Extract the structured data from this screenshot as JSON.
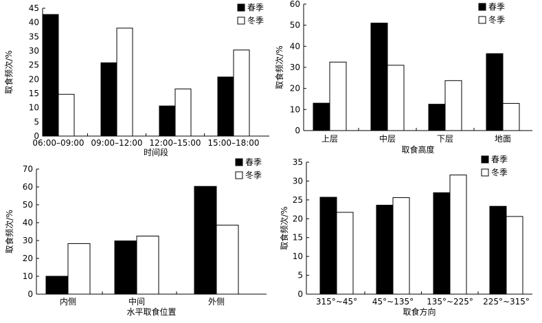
{
  "chart_data": [
    {
      "type": "bar",
      "categories": [
        "06:00–09:00",
        "09:00–12:00",
        "12:00–15:00",
        "15:00–18:00"
      ],
      "series": [
        {
          "name": "春季",
          "values": [
            42.8,
            25.8,
            10.6,
            20.8
          ]
        },
        {
          "name": "冬季",
          "values": [
            14.7,
            38.0,
            16.6,
            30.3
          ]
        }
      ],
      "xlabel": "时间段",
      "ylabel": "取食频次/%",
      "ylim": [
        0,
        45
      ],
      "yticks": [
        0,
        5,
        10,
        15,
        20,
        25,
        30,
        35,
        40,
        45
      ],
      "legend": "top-right",
      "grid": false
    },
    {
      "type": "bar",
      "categories": [
        "上层",
        "中层",
        "下层",
        "地面"
      ],
      "series": [
        {
          "name": "春季",
          "values": [
            13.0,
            51.0,
            12.5,
            36.5
          ]
        },
        {
          "name": "冬季",
          "values": [
            32.5,
            31.0,
            23.7,
            12.9
          ]
        }
      ],
      "xlabel": "取食高度",
      "ylabel": "取食频次/%",
      "ylim": [
        0,
        60
      ],
      "yticks": [
        0,
        10,
        20,
        30,
        40,
        50,
        60
      ],
      "legend": "top-right",
      "grid": false
    },
    {
      "type": "bar",
      "categories": [
        "内侧",
        "中间",
        "外侧"
      ],
      "series": [
        {
          "name": "春季",
          "values": [
            10.0,
            29.8,
            60.3
          ]
        },
        {
          "name": "冬季",
          "values": [
            28.3,
            32.5,
            38.6
          ]
        }
      ],
      "xlabel": "水平取食位置",
      "ylabel": "取食频次/%",
      "ylim": [
        0,
        70
      ],
      "yticks": [
        0,
        10,
        20,
        30,
        40,
        50,
        60,
        70
      ],
      "legend": "top-right",
      "grid": false
    },
    {
      "type": "bar",
      "categories": [
        "315°~45°",
        "45°~135°",
        "135°~225°",
        "225°~315°"
      ],
      "series": [
        {
          "name": "春季",
          "values": [
            25.7,
            23.6,
            26.9,
            23.3
          ]
        },
        {
          "name": "冬季",
          "values": [
            21.7,
            25.6,
            31.6,
            20.6
          ]
        }
      ],
      "xlabel": "取食方向",
      "ylabel": "取食频次/%",
      "ylim": [
        0,
        35
      ],
      "yticks": [
        0,
        5,
        10,
        15,
        20,
        25,
        30,
        35
      ],
      "legend": "top-left",
      "grid": false
    }
  ],
  "colors": {
    "spring": "#000000",
    "winter": "#ffffff",
    "stroke": "#000000"
  }
}
